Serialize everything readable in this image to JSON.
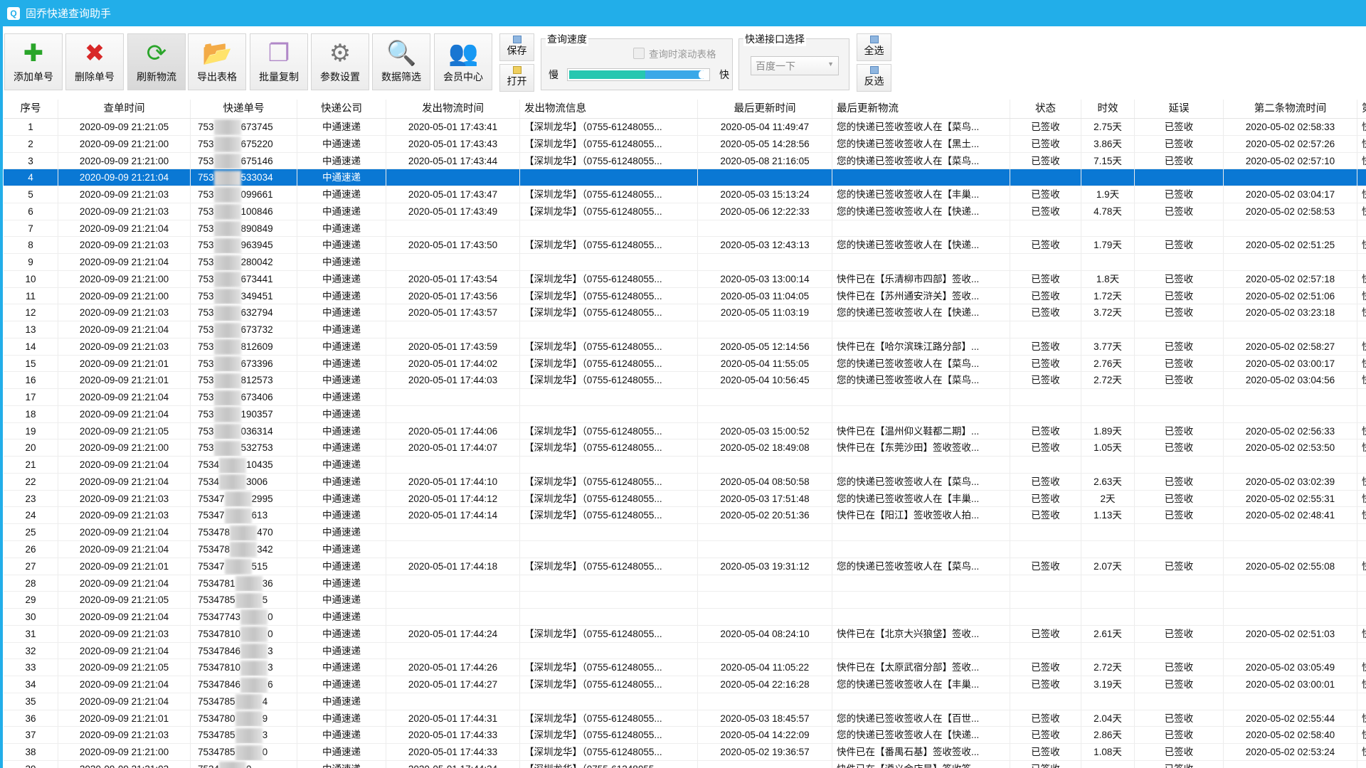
{
  "app": {
    "title": "固乔快递查询助手",
    "logo": "Q"
  },
  "colors": {
    "titlebar": "#22aee9",
    "selected_row": "#0a78d4",
    "slider_fill": "#26c7b0",
    "slider_track": "#3aa8e8"
  },
  "toolbar": {
    "buttons": [
      {
        "label": "添加单号",
        "icon": "plus-icon",
        "glyph": "✚",
        "color": "#2aa52a"
      },
      {
        "label": "删除单号",
        "icon": "delete-x-icon",
        "glyph": "✖",
        "color": "#d82828"
      },
      {
        "label": "刷新物流",
        "icon": "refresh-icon",
        "glyph": "⟳",
        "color": "#2aa52a"
      },
      {
        "label": "导出表格",
        "icon": "export-folder-icon",
        "glyph": "📂",
        "color": "#e0b020"
      },
      {
        "label": "批量复制",
        "icon": "copy-icon",
        "glyph": "❐",
        "color": "#b088c8"
      },
      {
        "label": "参数设置",
        "icon": "gear-icon",
        "glyph": "⚙",
        "color": "#777777"
      },
      {
        "label": "数据筛选",
        "icon": "search-folder-icon",
        "glyph": "🔍",
        "color": "#e0b020"
      },
      {
        "label": "会员中心",
        "icon": "users-icon",
        "glyph": "👥",
        "color": "#c04040"
      }
    ],
    "save": "保存",
    "open": "打开",
    "speed_group": {
      "title": "查询速度",
      "scroll_checkbox": "查询时滚动表格",
      "scroll_checked": false,
      "slow": "慢",
      "fast": "快",
      "speed_fraction": 0.97,
      "green_fraction": 0.55
    },
    "api_group": {
      "title": "快递接口选择",
      "selected": "百度一下"
    },
    "select_all": "全选",
    "invert": "反选"
  },
  "table": {
    "headers": [
      "序号",
      "查单时间",
      "快递单号",
      "快递公司",
      "发出物流时间",
      "发出物流信息",
      "最后更新时间",
      "最后更新物流",
      "状态",
      "时效",
      "延误",
      "第二条物流时间",
      "第"
    ],
    "selected_row": 4,
    "rows": [
      [
        "1",
        "2020-09-09 21:21:05",
        [
          "753",
          "673745"
        ],
        "中通速递",
        "2020-05-01 17:43:41",
        "【深圳龙华】（0755-61248055...",
        "2020-05-04 11:49:47",
        "您的快递已签收签收人在【菜鸟...",
        "已签收",
        "2.75天",
        "已签收",
        "2020-05-02 02:58:33",
        "快"
      ],
      [
        "2",
        "2020-09-09 21:21:00",
        [
          "753",
          "675220"
        ],
        "中通速递",
        "2020-05-01 17:43:43",
        "【深圳龙华】（0755-61248055...",
        "2020-05-05 14:28:56",
        "您的快递已签收签收人在【黑土...",
        "已签收",
        "3.86天",
        "已签收",
        "2020-05-02 02:57:26",
        "快"
      ],
      [
        "3",
        "2020-09-09 21:21:00",
        [
          "753",
          "675146"
        ],
        "中通速递",
        "2020-05-01 17:43:44",
        "【深圳龙华】（0755-61248055...",
        "2020-05-08 21:16:05",
        "您的快递已签收签收人在【菜鸟...",
        "已签收",
        "7.15天",
        "已签收",
        "2020-05-02 02:57:10",
        "快"
      ],
      [
        "4",
        "2020-09-09 21:21:04",
        [
          "753",
          "533034"
        ],
        "中通速递",
        "",
        "",
        "",
        "",
        "",
        "",
        "",
        "",
        ""
      ],
      [
        "5",
        "2020-09-09 21:21:03",
        [
          "753",
          "099661"
        ],
        "中通速递",
        "2020-05-01 17:43:47",
        "【深圳龙华】（0755-61248055...",
        "2020-05-03 15:13:24",
        "您的快递已签收签收人在【丰巢...",
        "已签收",
        "1.9天",
        "已签收",
        "2020-05-02 03:04:17",
        "快"
      ],
      [
        "6",
        "2020-09-09 21:21:03",
        [
          "753",
          "100846"
        ],
        "中通速递",
        "2020-05-01 17:43:49",
        "【深圳龙华】（0755-61248055...",
        "2020-05-06 12:22:33",
        "您的快递已签收签收人在【快递...",
        "已签收",
        "4.78天",
        "已签收",
        "2020-05-02 02:58:53",
        "快"
      ],
      [
        "7",
        "2020-09-09 21:21:04",
        [
          "753",
          "890849"
        ],
        "中通速递",
        "",
        "",
        "",
        "",
        "",
        "",
        "",
        "",
        ""
      ],
      [
        "8",
        "2020-09-09 21:21:03",
        [
          "753",
          "963945"
        ],
        "中通速递",
        "2020-05-01 17:43:50",
        "【深圳龙华】（0755-61248055...",
        "2020-05-03 12:43:13",
        "您的快递已签收签收人在【快递...",
        "已签收",
        "1.79天",
        "已签收",
        "2020-05-02 02:51:25",
        "快"
      ],
      [
        "9",
        "2020-09-09 21:21:04",
        [
          "753",
          "280042"
        ],
        "中通速递",
        "",
        "",
        "",
        "",
        "",
        "",
        "",
        "",
        ""
      ],
      [
        "10",
        "2020-09-09 21:21:00",
        [
          "753",
          "673441"
        ],
        "中通速递",
        "2020-05-01 17:43:54",
        "【深圳龙华】（0755-61248055...",
        "2020-05-03 13:00:14",
        "快件已在【乐清柳市四部】签收...",
        "已签收",
        "1.8天",
        "已签收",
        "2020-05-02 02:57:18",
        "快"
      ],
      [
        "11",
        "2020-09-09 21:21:00",
        [
          "753",
          "349451"
        ],
        "中通速递",
        "2020-05-01 17:43:56",
        "【深圳龙华】（0755-61248055...",
        "2020-05-03 11:04:05",
        "快件已在【苏州通安浒关】签收...",
        "已签收",
        "1.72天",
        "已签收",
        "2020-05-02 02:51:06",
        "快"
      ],
      [
        "12",
        "2020-09-09 21:21:03",
        [
          "753",
          "632794"
        ],
        "中通速递",
        "2020-05-01 17:43:57",
        "【深圳龙华】（0755-61248055...",
        "2020-05-05 11:03:19",
        "您的快递已签收签收人在【快递...",
        "已签收",
        "3.72天",
        "已签收",
        "2020-05-02 03:23:18",
        "快"
      ],
      [
        "13",
        "2020-09-09 21:21:04",
        [
          "753",
          "673732"
        ],
        "中通速递",
        "",
        "",
        "",
        "",
        "",
        "",
        "",
        "",
        ""
      ],
      [
        "14",
        "2020-09-09 21:21:03",
        [
          "753",
          "812609"
        ],
        "中通速递",
        "2020-05-01 17:43:59",
        "【深圳龙华】（0755-61248055...",
        "2020-05-05 12:14:56",
        "快件已在【哈尔滨珠江路分部】...",
        "已签收",
        "3.77天",
        "已签收",
        "2020-05-02 02:58:27",
        "快"
      ],
      [
        "15",
        "2020-09-09 21:21:01",
        [
          "753",
          "673396"
        ],
        "中通速递",
        "2020-05-01 17:44:02",
        "【深圳龙华】（0755-61248055...",
        "2020-05-04 11:55:05",
        "您的快递已签收签收人在【菜鸟...",
        "已签收",
        "2.76天",
        "已签收",
        "2020-05-02 03:00:17",
        "快"
      ],
      [
        "16",
        "2020-09-09 21:21:01",
        [
          "753",
          "812573"
        ],
        "中通速递",
        "2020-05-01 17:44:03",
        "【深圳龙华】（0755-61248055...",
        "2020-05-04 10:56:45",
        "您的快递已签收签收人在【菜鸟...",
        "已签收",
        "2.72天",
        "已签收",
        "2020-05-02 03:04:56",
        "快"
      ],
      [
        "17",
        "2020-09-09 21:21:04",
        [
          "753",
          "673406"
        ],
        "中通速递",
        "",
        "",
        "",
        "",
        "",
        "",
        "",
        "",
        ""
      ],
      [
        "18",
        "2020-09-09 21:21:04",
        [
          "753",
          "190357"
        ],
        "中通速递",
        "",
        "",
        "",
        "",
        "",
        "",
        "",
        "",
        ""
      ],
      [
        "19",
        "2020-09-09 21:21:05",
        [
          "753",
          "036314"
        ],
        "中通速递",
        "2020-05-01 17:44:06",
        "【深圳龙华】（0755-61248055...",
        "2020-05-03 15:00:52",
        "快件已在【温州仰义鞋都二期】...",
        "已签收",
        "1.89天",
        "已签收",
        "2020-05-02 02:56:33",
        "快"
      ],
      [
        "20",
        "2020-09-09 21:21:00",
        [
          "753",
          "532753"
        ],
        "中通速递",
        "2020-05-01 17:44:07",
        "【深圳龙华】（0755-61248055...",
        "2020-05-02 18:49:08",
        "快件已在【东莞沙田】签收签收...",
        "已签收",
        "1.05天",
        "已签收",
        "2020-05-02 02:53:50",
        "快"
      ],
      [
        "21",
        "2020-09-09 21:21:04",
        [
          "7534",
          "10435"
        ],
        "中通速递",
        "",
        "",
        "",
        "",
        "",
        "",
        "",
        "",
        ""
      ],
      [
        "22",
        "2020-09-09 21:21:04",
        [
          "7534",
          "3006"
        ],
        "中通速递",
        "2020-05-01 17:44:10",
        "【深圳龙华】（0755-61248055...",
        "2020-05-04 08:50:58",
        "您的快递已签收签收人在【菜鸟...",
        "已签收",
        "2.63天",
        "已签收",
        "2020-05-02 03:02:39",
        "快"
      ],
      [
        "23",
        "2020-09-09 21:21:03",
        [
          "75347",
          "2995"
        ],
        "中通速递",
        "2020-05-01 17:44:12",
        "【深圳龙华】（0755-61248055...",
        "2020-05-03 17:51:48",
        "您的快递已签收签收人在【丰巢...",
        "已签收",
        "2天",
        "已签收",
        "2020-05-02 02:55:31",
        "快"
      ],
      [
        "24",
        "2020-09-09 21:21:03",
        [
          "75347",
          "613"
        ],
        "中通速递",
        "2020-05-01 17:44:14",
        "【深圳龙华】（0755-61248055...",
        "2020-05-02 20:51:36",
        "快件已在【阳江】签收签收人拍...",
        "已签收",
        "1.13天",
        "已签收",
        "2020-05-02 02:48:41",
        "快"
      ],
      [
        "25",
        "2020-09-09 21:21:04",
        [
          "753478",
          "470"
        ],
        "中通速递",
        "",
        "",
        "",
        "",
        "",
        "",
        "",
        "",
        ""
      ],
      [
        "26",
        "2020-09-09 21:21:04",
        [
          "753478",
          "342"
        ],
        "中通速递",
        "",
        "",
        "",
        "",
        "",
        "",
        "",
        "",
        ""
      ],
      [
        "27",
        "2020-09-09 21:21:01",
        [
          "75347",
          "515"
        ],
        "中通速递",
        "2020-05-01 17:44:18",
        "【深圳龙华】（0755-61248055...",
        "2020-05-03 19:31:12",
        "您的快递已签收签收人在【菜鸟...",
        "已签收",
        "2.07天",
        "已签收",
        "2020-05-02 02:55:08",
        "快"
      ],
      [
        "28",
        "2020-09-09 21:21:04",
        [
          "7534781",
          "36"
        ],
        "中通速递",
        "",
        "",
        "",
        "",
        "",
        "",
        "",
        "",
        ""
      ],
      [
        "29",
        "2020-09-09 21:21:05",
        [
          "7534785",
          "5"
        ],
        "中通速递",
        "",
        "",
        "",
        "",
        "",
        "",
        "",
        "",
        ""
      ],
      [
        "30",
        "2020-09-09 21:21:04",
        [
          "75347743",
          "0"
        ],
        "中通速递",
        "",
        "",
        "",
        "",
        "",
        "",
        "",
        "",
        ""
      ],
      [
        "31",
        "2020-09-09 21:21:03",
        [
          "75347810",
          "0"
        ],
        "中通速递",
        "2020-05-01 17:44:24",
        "【深圳龙华】（0755-61248055...",
        "2020-05-04 08:24:10",
        "快件已在【北京大兴狼垡】签收...",
        "已签收",
        "2.61天",
        "已签收",
        "2020-05-02 02:51:03",
        "快"
      ],
      [
        "32",
        "2020-09-09 21:21:04",
        [
          "75347846",
          "3"
        ],
        "中通速递",
        "",
        "",
        "",
        "",
        "",
        "",
        "",
        "",
        ""
      ],
      [
        "33",
        "2020-09-09 21:21:05",
        [
          "75347810",
          "3"
        ],
        "中通速递",
        "2020-05-01 17:44:26",
        "【深圳龙华】（0755-61248055...",
        "2020-05-04 11:05:22",
        "快件已在【太原武宿分部】签收...",
        "已签收",
        "2.72天",
        "已签收",
        "2020-05-02 03:05:49",
        "快"
      ],
      [
        "34",
        "2020-09-09 21:21:04",
        [
          "75347846",
          "6"
        ],
        "中通速递",
        "2020-05-01 17:44:27",
        "【深圳龙华】（0755-61248055...",
        "2020-05-04 22:16:28",
        "您的快递已签收签收人在【丰巢...",
        "已签收",
        "3.19天",
        "已签收",
        "2020-05-02 03:00:01",
        "快"
      ],
      [
        "35",
        "2020-09-09 21:21:04",
        [
          "7534785",
          "4"
        ],
        "中通速递",
        "",
        "",
        "",
        "",
        "",
        "",
        "",
        "",
        ""
      ],
      [
        "36",
        "2020-09-09 21:21:01",
        [
          "7534780",
          "9"
        ],
        "中通速递",
        "2020-05-01 17:44:31",
        "【深圳龙华】（0755-61248055...",
        "2020-05-03 18:45:57",
        "您的快递已签收签收人在【百世...",
        "已签收",
        "2.04天",
        "已签收",
        "2020-05-02 02:55:44",
        "快"
      ],
      [
        "37",
        "2020-09-09 21:21:03",
        [
          "7534785",
          "3"
        ],
        "中通速递",
        "2020-05-01 17:44:33",
        "【深圳龙华】（0755-61248055...",
        "2020-05-04 14:22:09",
        "您的快递已签收签收人在【快递...",
        "已签收",
        "2.86天",
        "已签收",
        "2020-05-02 02:58:40",
        "快"
      ],
      [
        "38",
        "2020-09-09 21:21:00",
        [
          "7534785",
          "0"
        ],
        "中通速递",
        "2020-05-01 17:44:33",
        "【深圳龙华】（0755-61248055...",
        "2020-05-02 19:36:57",
        "快件已在【番禺石基】签收签收...",
        "已签收",
        "1.08天",
        "已签收",
        "2020-05-02 02:53:24",
        "快"
      ],
      [
        "39",
        "2020-09-09 21:21:03",
        [
          "7534",
          "0"
        ],
        "中通速递",
        "2020-05-01 17:44:34",
        "【深圳龙华】（0755-61248055...",
        "",
        "快件已在【遵义金店是】签收签...",
        "已签收",
        "",
        "已签收",
        "",
        ""
      ]
    ]
  }
}
